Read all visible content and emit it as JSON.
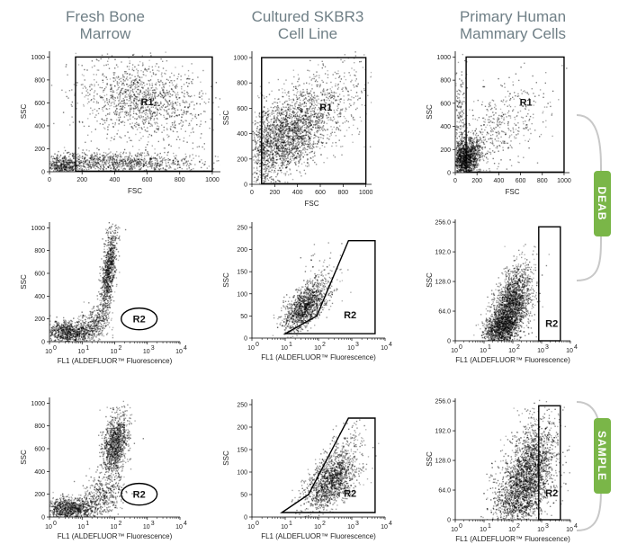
{
  "columns": [
    {
      "title_lines": [
        "Fresh Bone",
        "Marrow"
      ]
    },
    {
      "title_lines": [
        "Cultured SKBR3",
        "Cell Line"
      ]
    },
    {
      "title_lines": [
        "Primary Human",
        "Mammary Cells"
      ]
    }
  ],
  "side_tabs": [
    {
      "label": "DEAB",
      "color": "#7ab648"
    },
    {
      "label": "SAMPLE",
      "color": "#7ab648"
    }
  ],
  "chart_data": [
    {
      "type": "scatter",
      "panel": "bone-marrow-fsc-ssc",
      "row": 1,
      "col": 1,
      "xlabel": "FSC",
      "ylabel": "SSC",
      "xscale": "linear",
      "xlim": [
        0,
        1050
      ],
      "ylim": [
        0,
        1050
      ],
      "xticks": [
        "0",
        "200",
        "400",
        "600",
        "800",
        "1000"
      ],
      "yticks": [
        "0",
        "200",
        "400",
        "600",
        "800",
        "1000"
      ],
      "gates": [
        {
          "label": "R1",
          "shape": "rect",
          "x": [
            160,
            1000
          ],
          "y": [
            5,
            1000
          ],
          "label_at": [
            600,
            580
          ]
        }
      ],
      "clusters": [
        {
          "x": 560,
          "y": 620,
          "sx": 190,
          "sy": 170,
          "n": 1300,
          "r": -0.2
        },
        {
          "x": 380,
          "y": 90,
          "sx": 260,
          "sy": 45,
          "n": 1100,
          "r": 0
        },
        {
          "x": 80,
          "y": 40,
          "sx": 50,
          "sy": 40,
          "n": 350,
          "r": 0
        }
      ]
    },
    {
      "type": "scatter",
      "panel": "skbr3-fsc-ssc",
      "row": 1,
      "col": 2,
      "xlabel": "FSC",
      "ylabel": "SSC",
      "xscale": "linear",
      "xlim": [
        0,
        1050
      ],
      "ylim": [
        0,
        1050
      ],
      "xticks": [
        "0",
        "200",
        "400",
        "600",
        "800",
        "1000"
      ],
      "yticks": [
        "0",
        "200",
        "400",
        "600",
        "800",
        "1000"
      ],
      "gates": [
        {
          "label": "R1",
          "shape": "rect",
          "x": [
            85,
            1000
          ],
          "y": [
            5,
            1000
          ],
          "label_at": [
            650,
            580
          ]
        }
      ],
      "clusters": [
        {
          "x": 300,
          "y": 380,
          "sx": 180,
          "sy": 170,
          "n": 2000,
          "r": 0.5
        },
        {
          "x": 600,
          "y": 620,
          "sx": 260,
          "sy": 190,
          "n": 500,
          "r": 0.4
        },
        {
          "x": 100,
          "y": 300,
          "sx": 40,
          "sy": 200,
          "n": 200,
          "r": 0
        }
      ]
    },
    {
      "type": "scatter",
      "panel": "mammary-fsc-ssc",
      "row": 1,
      "col": 3,
      "xlabel": "FSC",
      "ylabel": "SSC",
      "xscale": "linear",
      "xlim": [
        0,
        1050
      ],
      "ylim": [
        0,
        1050
      ],
      "xticks": [
        "0",
        "200",
        "400",
        "600",
        "800",
        "1000"
      ],
      "yticks": [
        "0",
        "200",
        "400",
        "600",
        "800",
        "1000"
      ],
      "gates": [
        {
          "label": "R1",
          "shape": "rect",
          "x": [
            100,
            1000
          ],
          "y": [
            5,
            1000
          ],
          "label_at": [
            650,
            580
          ]
        }
      ],
      "clusters": [
        {
          "x": 90,
          "y": 130,
          "sx": 70,
          "sy": 90,
          "n": 1400,
          "r": 0.3
        },
        {
          "x": 350,
          "y": 380,
          "sx": 240,
          "sy": 210,
          "n": 500,
          "r": 0.5
        },
        {
          "x": 40,
          "y": 400,
          "sx": 30,
          "sy": 260,
          "n": 220,
          "r": 0
        }
      ]
    },
    {
      "type": "scatter",
      "panel": "bone-marrow-deab",
      "row": 2,
      "col": 1,
      "xlabel": "FL1 (ALDEFLUOR™ Fluorescence)",
      "ylabel": "SSC",
      "xscale": "log",
      "xlim": [
        0,
        4
      ],
      "ylim": [
        0,
        1050
      ],
      "xticks": [
        "0",
        "1",
        "2",
        "3",
        "4"
      ],
      "yticks": [
        "0",
        "200",
        "400",
        "600",
        "800",
        "1000"
      ],
      "gates": [
        {
          "label": "R2",
          "shape": "ellipse",
          "cx": 2.75,
          "cy": 200,
          "rx": 0.55,
          "ry": 95
        }
      ],
      "clusters": [
        {
          "x": 0.6,
          "y": 90,
          "sx": 0.4,
          "sy": 50,
          "n": 900,
          "r": 0
        },
        {
          "x": 1.8,
          "y": 620,
          "sx": 0.12,
          "sy": 200,
          "n": 900,
          "r": 0.6
        },
        {
          "x": 1.35,
          "y": 170,
          "sx": 0.25,
          "sy": 80,
          "n": 300,
          "r": 0.4
        }
      ]
    },
    {
      "type": "scatter",
      "panel": "skbr3-deab",
      "row": 2,
      "col": 2,
      "xlabel": "FL1 (ALDEFLUOR™ Fluorescence)",
      "ylabel": "SSC",
      "xscale": "log",
      "xlim": [
        0,
        4
      ],
      "ylim": [
        0,
        262
      ],
      "xticks": [
        "0",
        "1",
        "2",
        "3",
        "4"
      ],
      "yticks": [
        "0",
        "50",
        "100",
        "150",
        "200",
        "250"
      ],
      "gates": [
        {
          "label": "R2",
          "shape": "polygon",
          "points": [
            [
              1,
              10
            ],
            [
              1.95,
              50
            ],
            [
              2.9,
              220
            ],
            [
              3.7,
              220
            ],
            [
              3.7,
              10
            ]
          ],
          "label_at": [
            2.95,
            45
          ]
        }
      ],
      "clusters": [
        {
          "x": 1.55,
          "y": 70,
          "sx": 0.3,
          "sy": 25,
          "n": 1100,
          "r": 0.55
        },
        {
          "x": 2.0,
          "y": 120,
          "sx": 0.35,
          "sy": 35,
          "n": 200,
          "r": 0.5
        }
      ]
    },
    {
      "type": "scatter",
      "panel": "mammary-deab",
      "row": 2,
      "col": 3,
      "xlabel": "FL1 (ALDEFLUOR™ Fluorescence)",
      "ylabel": "SSC",
      "xscale": "log",
      "xlim": [
        0,
        4
      ],
      "ylim": [
        0,
        262
      ],
      "xticks": [
        "0",
        "1",
        "2",
        "3",
        "4"
      ],
      "yticks": [
        "0",
        "64.0",
        "128.0",
        "192.0",
        "256.0"
      ],
      "gates": [
        {
          "label": "R2",
          "shape": "rect",
          "x": [
            2.9,
            3.65
          ],
          "y": [
            0,
            246
          ],
          "label_at": [
            3.35,
            30
          ]
        }
      ],
      "clusters": [
        {
          "x": 1.9,
          "y": 70,
          "sx": 0.35,
          "sy": 45,
          "n": 2300,
          "r": 0.5
        },
        {
          "x": 1.5,
          "y": 25,
          "sx": 0.3,
          "sy": 18,
          "n": 700,
          "r": 0.2
        }
      ]
    },
    {
      "type": "scatter",
      "panel": "bone-marrow-sample",
      "row": 3,
      "col": 1,
      "xlabel": "FL1 (ALDEFLUOR™ Fluorescence)",
      "ylabel": "SSC",
      "xscale": "log",
      "xlim": [
        0,
        4
      ],
      "ylim": [
        0,
        1050
      ],
      "xticks": [
        "0",
        "1",
        "2",
        "3",
        "4"
      ],
      "yticks": [
        "0",
        "200",
        "400",
        "600",
        "800",
        "1000"
      ],
      "gates": [
        {
          "label": "R2",
          "shape": "ellipse",
          "cx": 2.75,
          "cy": 200,
          "rx": 0.55,
          "ry": 95
        }
      ],
      "clusters": [
        {
          "x": 0.6,
          "y": 80,
          "sx": 0.45,
          "sy": 50,
          "n": 1000,
          "r": 0
        },
        {
          "x": 2.0,
          "y": 640,
          "sx": 0.2,
          "sy": 130,
          "n": 1100,
          "r": 0.3
        },
        {
          "x": 1.6,
          "y": 200,
          "sx": 0.35,
          "sy": 90,
          "n": 400,
          "r": 0.2
        }
      ]
    },
    {
      "type": "scatter",
      "panel": "skbr3-sample",
      "row": 3,
      "col": 2,
      "xlabel": "FL1 (ALDEFLUOR™ Fluorescence)",
      "ylabel": "SSC",
      "xscale": "log",
      "xlim": [
        0,
        4
      ],
      "ylim": [
        0,
        262
      ],
      "xticks": [
        "0",
        "1",
        "2",
        "3",
        "4"
      ],
      "yticks": [
        "0",
        "50",
        "100",
        "150",
        "200",
        "250"
      ],
      "gates": [
        {
          "label": "R2",
          "shape": "polygon",
          "points": [
            [
              0.9,
              10
            ],
            [
              1.7,
              50
            ],
            [
              2.9,
              220
            ],
            [
              3.7,
              220
            ],
            [
              3.7,
              10
            ]
          ],
          "label_at": [
            2.95,
            45
          ]
        }
      ],
      "clusters": [
        {
          "x": 2.35,
          "y": 75,
          "sx": 0.38,
          "sy": 30,
          "n": 1200,
          "r": 0.5
        },
        {
          "x": 2.6,
          "y": 130,
          "sx": 0.35,
          "sy": 35,
          "n": 300,
          "r": 0.5
        }
      ]
    },
    {
      "type": "scatter",
      "panel": "mammary-sample",
      "row": 3,
      "col": 3,
      "xlabel": "FL1 (ALDEFLUOR™ Fluorescence)",
      "ylabel": "SSC",
      "xscale": "log",
      "xlim": [
        0,
        4
      ],
      "ylim": [
        0,
        262
      ],
      "xticks": [
        "0",
        "1",
        "2",
        "3",
        "4"
      ],
      "yticks": [
        "0",
        "64.0",
        "128.0",
        "192.0",
        "256.0"
      ],
      "gates": [
        {
          "label": "R2",
          "shape": "rect",
          "x": [
            2.9,
            3.65
          ],
          "y": [
            0,
            246
          ],
          "label_at": [
            3.35,
            50
          ]
        }
      ],
      "clusters": [
        {
          "x": 2.3,
          "y": 70,
          "sx": 0.5,
          "sy": 55,
          "n": 2300,
          "r": 0.45
        },
        {
          "x": 2.8,
          "y": 130,
          "sx": 0.4,
          "sy": 50,
          "n": 700,
          "r": 0.3
        }
      ]
    }
  ]
}
